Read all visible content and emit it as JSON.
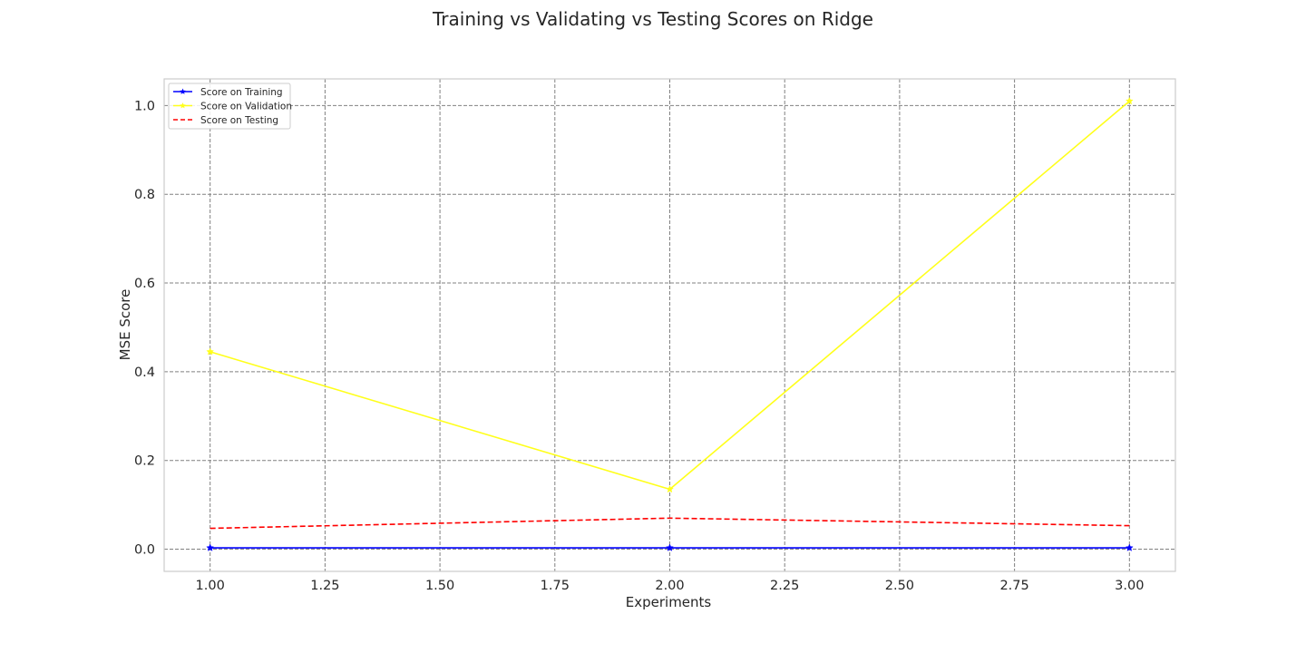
{
  "chart_data": {
    "type": "line",
    "title": "Training vs Validating vs Testing Scores on Ridge",
    "xlabel": "Experiments",
    "ylabel": "MSE Score",
    "x": [
      1,
      2,
      3
    ],
    "xlim": [
      0.9,
      3.1
    ],
    "ylim": [
      -0.05,
      1.06
    ],
    "x_ticks": [
      "1.00",
      "1.25",
      "1.50",
      "1.75",
      "2.00",
      "2.25",
      "2.50",
      "2.75",
      "3.00"
    ],
    "y_ticks": [
      "0.0",
      "0.2",
      "0.4",
      "0.6",
      "0.8",
      "1.0"
    ],
    "grid": true,
    "grid_style": "dashed",
    "legend_position": "top-left",
    "series": [
      {
        "name": "Score on Training",
        "values": [
          0.003,
          0.003,
          0.003
        ],
        "color": "#0000ff",
        "style": "solid",
        "marker": "star"
      },
      {
        "name": "Score on Validation",
        "values": [
          0.445,
          0.135,
          1.01
        ],
        "color": "#ffff1a",
        "style": "solid",
        "marker": "star"
      },
      {
        "name": "Score on Testing",
        "values": [
          0.047,
          0.07,
          0.053
        ],
        "color": "#ff0000",
        "style": "dashed",
        "marker": "none"
      }
    ]
  }
}
